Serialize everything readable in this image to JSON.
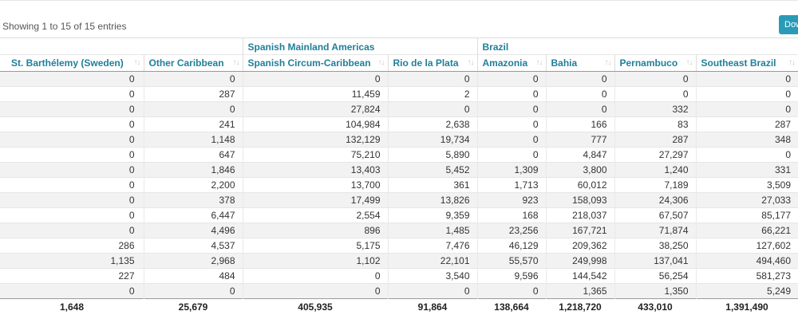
{
  "info_text": "Showing 1 to 15 of 15 entries",
  "download_label": "Download",
  "sort_glyph": "↑↓",
  "groups": {
    "spanish": "Spanish Mainland Americas",
    "brazil": "Brazil"
  },
  "columns": [
    "St. Barthélemy (Sweden)",
    "Other Caribbean",
    "Spanish Circum-Caribbean",
    "Rio de la Plata",
    "Amazonia",
    "Bahia",
    "Pernambuco",
    "Southeast Brazil"
  ],
  "rows": [
    [
      "0",
      "0",
      "0",
      "0",
      "0",
      "0",
      "0",
      "0"
    ],
    [
      "0",
      "287",
      "11,459",
      "2",
      "0",
      "0",
      "0",
      "0"
    ],
    [
      "0",
      "0",
      "27,824",
      "0",
      "0",
      "0",
      "332",
      "0"
    ],
    [
      "0",
      "241",
      "104,984",
      "2,638",
      "0",
      "166",
      "83",
      "287"
    ],
    [
      "0",
      "1,148",
      "132,129",
      "19,734",
      "0",
      "777",
      "287",
      "348"
    ],
    [
      "0",
      "647",
      "75,210",
      "5,890",
      "0",
      "4,847",
      "27,297",
      "0"
    ],
    [
      "0",
      "1,846",
      "13,403",
      "5,452",
      "1,309",
      "3,800",
      "1,240",
      "331"
    ],
    [
      "0",
      "2,200",
      "13,700",
      "361",
      "1,713",
      "60,012",
      "7,189",
      "3,509"
    ],
    [
      "0",
      "378",
      "17,499",
      "13,826",
      "923",
      "158,093",
      "24,306",
      "27,033"
    ],
    [
      "0",
      "6,447",
      "2,554",
      "9,359",
      "168",
      "218,037",
      "67,507",
      "85,177"
    ],
    [
      "0",
      "4,496",
      "896",
      "1,485",
      "23,256",
      "167,721",
      "71,874",
      "66,221"
    ],
    [
      "286",
      "4,537",
      "5,175",
      "7,476",
      "46,129",
      "209,362",
      "38,250",
      "127,602"
    ],
    [
      "1,135",
      "2,968",
      "1,102",
      "22,101",
      "55,570",
      "249,998",
      "137,041",
      "494,460"
    ],
    [
      "227",
      "484",
      "0",
      "3,540",
      "9,596",
      "144,542",
      "56,254",
      "581,273"
    ],
    [
      "0",
      "0",
      "0",
      "0",
      "0",
      "1,365",
      "1,350",
      "5,249"
    ]
  ],
  "totals": [
    "1,648",
    "25,679",
    "405,935",
    "91,864",
    "138,664",
    "1,218,720",
    "433,010",
    "1,391,490"
  ]
}
